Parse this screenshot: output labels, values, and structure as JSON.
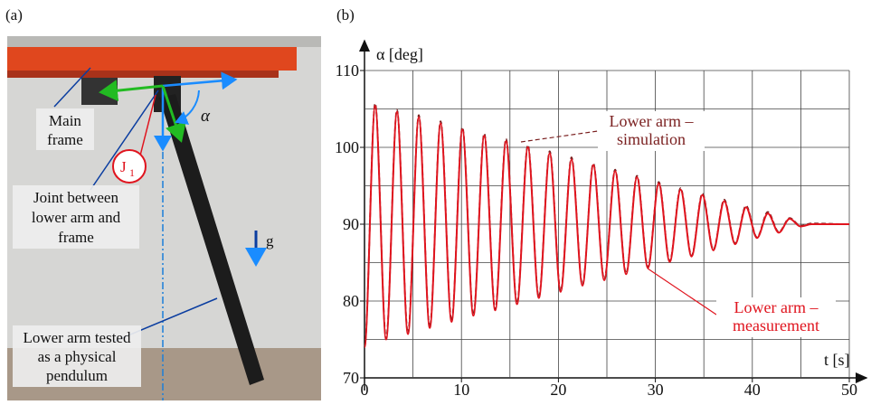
{
  "panel_a": {
    "label": "(a)",
    "main_frame": [
      "Main",
      "frame"
    ],
    "joint": [
      "Joint between",
      "lower arm and",
      "frame"
    ],
    "joint_symbol": {
      "main": "J",
      "sub": "1"
    },
    "angle": "α",
    "gravity": "g",
    "lower_arm": [
      "Lower arm tested",
      "as a physical",
      "pendulum"
    ]
  },
  "chart_data": {
    "type": "line",
    "panel_label": "(b)",
    "y_label": "α [deg]",
    "x_label": "t [s]",
    "x": [
      0,
      1.1,
      2.23,
      3.35,
      4.48,
      5.6,
      6.73,
      7.85,
      8.98,
      10.1,
      11.23,
      12.35,
      13.48,
      14.6,
      15.73,
      16.85,
      17.98,
      19.1,
      20.23,
      21.35,
      22.48,
      23.6,
      24.73,
      25.85,
      26.98,
      28.1,
      29.23,
      30.35,
      31.48,
      32.6,
      33.73,
      34.85,
      35.98,
      37.1,
      38.23,
      39.35,
      40.48,
      41.6,
      42.73,
      43.85,
      44.98,
      46.1,
      50
    ],
    "series": [
      {
        "color": "#7a1f1f",
        "dash": true,
        "values": [
          74,
          105.7,
          75.1,
          104.9,
          75.8,
          104.2,
          76.6,
          103.4,
          77.4,
          102.6,
          78.2,
          101.8,
          78.9,
          101.1,
          79.7,
          100.3,
          80.5,
          99.5,
          81.3,
          98.7,
          82.1,
          97.9,
          82.8,
          97.1,
          83.6,
          96.3,
          84.4,
          95.5,
          85.2,
          94.7,
          85.9,
          94.0,
          86.7,
          93.2,
          87.5,
          92.4,
          88.3,
          91.6,
          89.0,
          90.8,
          89.8,
          90.1,
          90
        ]
      },
      {
        "color": "#e0141e",
        "dash": false,
        "values": [
          74,
          105.4,
          75.0,
          104.6,
          75.7,
          103.9,
          76.5,
          103.1,
          77.3,
          102.3,
          78.1,
          101.5,
          78.8,
          100.8,
          79.6,
          100.0,
          80.4,
          99.2,
          81.2,
          98.4,
          82.0,
          97.7,
          82.7,
          96.9,
          83.5,
          96.1,
          84.3,
          95.3,
          85.1,
          94.5,
          85.8,
          93.8,
          86.6,
          93.0,
          87.4,
          92.2,
          88.2,
          91.4,
          88.9,
          90.7,
          89.7,
          90,
          90
        ]
      }
    ],
    "annotations": [
      {
        "lines": [
          "Lower arm –",
          "simulation"
        ],
        "color": "#7a1f1f"
      },
      {
        "lines": [
          "Lower arm –",
          "measurement"
        ],
        "color": "#e0141e"
      }
    ],
    "xlim": [
      0,
      50
    ],
    "ylim": [
      70,
      110
    ],
    "xticks": [
      0,
      10,
      20,
      30,
      40,
      50
    ],
    "yticks": [
      70,
      80,
      90,
      100,
      110
    ],
    "xgrid": [
      5,
      10,
      15,
      20,
      25,
      30,
      35,
      40,
      45,
      50
    ],
    "ygrid": [
      75,
      80,
      85,
      90,
      95,
      100,
      105,
      110
    ]
  }
}
